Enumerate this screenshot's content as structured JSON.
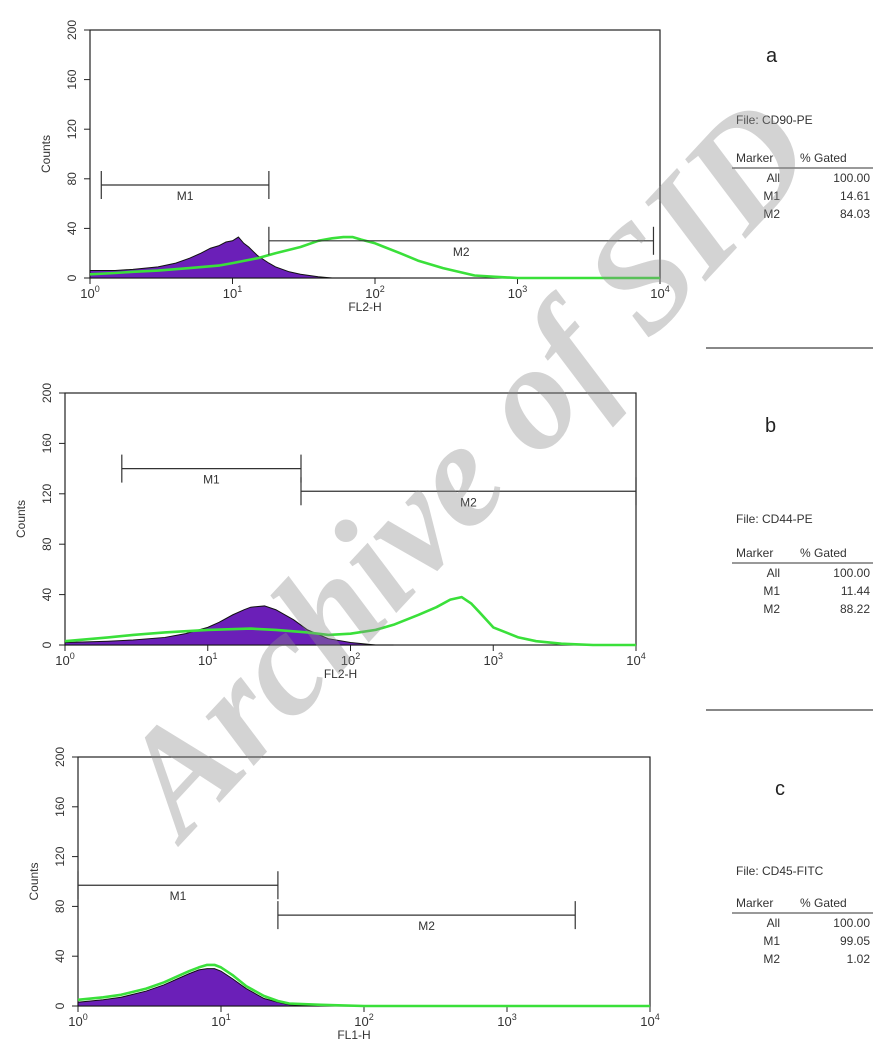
{
  "watermark": "Archive of SID",
  "colors": {
    "stained_line": "#3ae03a",
    "isotype_fill": "#6b1fb8",
    "axis": "#222222",
    "marker": "#333333"
  },
  "chart_data": [
    {
      "type": "area",
      "panel_label": "a",
      "file": "File: CD90-PE",
      "xlabel": "FL2-H",
      "ylabel": "Counts",
      "x_scale": "log",
      "xlim": [
        1,
        10000
      ],
      "x_ticks": [
        "10",
        "10",
        "10",
        "10",
        "10"
      ],
      "x_tick_exponents": [
        "0",
        "1",
        "2",
        "3",
        "4"
      ],
      "ylim": [
        0,
        200
      ],
      "y_ticks": [
        "0",
        "40",
        "80",
        "120",
        "160",
        "200"
      ],
      "markers": [
        {
          "name": "M1",
          "x_range": [
            1.2,
            18
          ],
          "y_level": 75
        },
        {
          "name": "M2",
          "x_range": [
            18,
            9000
          ],
          "y_level": 30
        }
      ],
      "series": [
        {
          "x": [
            1,
            1.5,
            2,
            3,
            4,
            5,
            6,
            7,
            8,
            9,
            10,
            11,
            12,
            13,
            15,
            18,
            20,
            25,
            30,
            40,
            50,
            70,
            100,
            150
          ],
          "y": [
            6,
            6,
            7,
            9,
            12,
            16,
            20,
            24,
            26,
            29,
            30,
            33,
            28,
            25,
            18,
            12,
            9,
            5,
            3,
            1,
            0,
            0,
            0,
            0
          ]
        },
        {
          "x": [
            1,
            1.5,
            2,
            3,
            5,
            8,
            10,
            15,
            20,
            30,
            40,
            50,
            60,
            70,
            80,
            100,
            150,
            200,
            300,
            500,
            700,
            1000,
            2000,
            5000,
            10000
          ],
          "y": [
            3,
            4,
            5,
            6,
            8,
            10,
            12,
            16,
            20,
            25,
            30,
            32,
            33,
            33,
            31,
            28,
            20,
            14,
            8,
            2,
            1,
            0,
            0,
            0,
            0
          ]
        }
      ],
      "stats": {
        "header": {
          "marker": "Marker",
          "gated": "% Gated"
        },
        "rows": [
          {
            "marker": "All",
            "gated": "100.00"
          },
          {
            "marker": "M1",
            "gated": "14.61"
          },
          {
            "marker": "M2",
            "gated": "84.03"
          }
        ]
      }
    },
    {
      "type": "area",
      "panel_label": "b",
      "file": "File: CD44-PE",
      "xlabel": "FL2-H",
      "ylabel": "Counts",
      "x_scale": "log",
      "xlim": [
        1,
        10000
      ],
      "x_ticks": [
        "10",
        "10",
        "10",
        "10",
        "10"
      ],
      "x_tick_exponents": [
        "0",
        "1",
        "2",
        "3",
        "4"
      ],
      "ylim": [
        0,
        200
      ],
      "y_ticks": [
        "0",
        "40",
        "80",
        "120",
        "160",
        "200"
      ],
      "markers": [
        {
          "name": "M1",
          "x_range": [
            2.5,
            45
          ],
          "y_level": 140
        },
        {
          "name": "M2",
          "x_range": [
            45,
            10000
          ],
          "y_level": 122
        }
      ],
      "series": [
        {
          "x": [
            1,
            2,
            3,
            5,
            7,
            10,
            12,
            15,
            18,
            20,
            25,
            30,
            40,
            50,
            70,
            100,
            150,
            200
          ],
          "y": [
            2,
            3,
            4,
            6,
            9,
            14,
            18,
            24,
            28,
            30,
            31,
            28,
            20,
            12,
            5,
            2,
            0,
            0
          ]
        },
        {
          "x": [
            1,
            2,
            3,
            5,
            10,
            20,
            30,
            50,
            70,
            100,
            150,
            200,
            300,
            400,
            500,
            600,
            700,
            800,
            1000,
            1500,
            2000,
            3000,
            5000,
            10000
          ],
          "y": [
            3,
            6,
            8,
            10,
            12,
            13,
            12,
            10,
            8,
            9,
            12,
            16,
            24,
            30,
            36,
            38,
            33,
            26,
            14,
            6,
            3,
            1,
            0,
            0
          ]
        }
      ],
      "stats": {
        "header": {
          "marker": "Marker",
          "gated": "% Gated"
        },
        "rows": [
          {
            "marker": "All",
            "gated": "100.00"
          },
          {
            "marker": "M1",
            "gated": "11.44"
          },
          {
            "marker": "M2",
            "gated": "88.22"
          }
        ]
      }
    },
    {
      "type": "area",
      "panel_label": "c",
      "file": "File: CD45-FITC",
      "xlabel": "FL1-H",
      "ylabel": "Counts",
      "x_scale": "log",
      "xlim": [
        1,
        10000
      ],
      "x_ticks": [
        "10",
        "10",
        "10",
        "10",
        "10"
      ],
      "x_tick_exponents": [
        "0",
        "1",
        "2",
        "3",
        "4"
      ],
      "ylim": [
        0,
        200
      ],
      "y_ticks": [
        "0",
        "40",
        "80",
        "120",
        "160",
        "200"
      ],
      "markers": [
        {
          "name": "M1",
          "x_range": [
            1,
            25
          ],
          "y_level": 97
        },
        {
          "name": "M2",
          "x_range": [
            25,
            3000
          ],
          "y_level": 73
        }
      ],
      "series": [
        {
          "x": [
            1,
            1.5,
            2,
            3,
            4,
            5,
            6,
            7,
            8,
            9,
            10,
            12,
            15,
            20,
            25,
            30,
            50,
            100
          ],
          "y": [
            3,
            5,
            7,
            12,
            17,
            22,
            26,
            29,
            30,
            30,
            28,
            22,
            14,
            6,
            3,
            1,
            0,
            0
          ]
        },
        {
          "x": [
            1,
            1.5,
            2,
            3,
            4,
            5,
            6,
            7,
            8,
            9,
            10,
            12,
            15,
            20,
            25,
            30,
            50,
            100,
            1000,
            10000
          ],
          "y": [
            5,
            7,
            9,
            14,
            19,
            24,
            28,
            31,
            33,
            33,
            31,
            25,
            16,
            8,
            4,
            2,
            1,
            0,
            0,
            0
          ]
        }
      ],
      "stats": {
        "header": {
          "marker": "Marker",
          "gated": "% Gated"
        },
        "rows": [
          {
            "marker": "All",
            "gated": "100.00"
          },
          {
            "marker": "M1",
            "gated": "99.05"
          },
          {
            "marker": "M2",
            "gated": "1.02"
          }
        ]
      }
    }
  ]
}
